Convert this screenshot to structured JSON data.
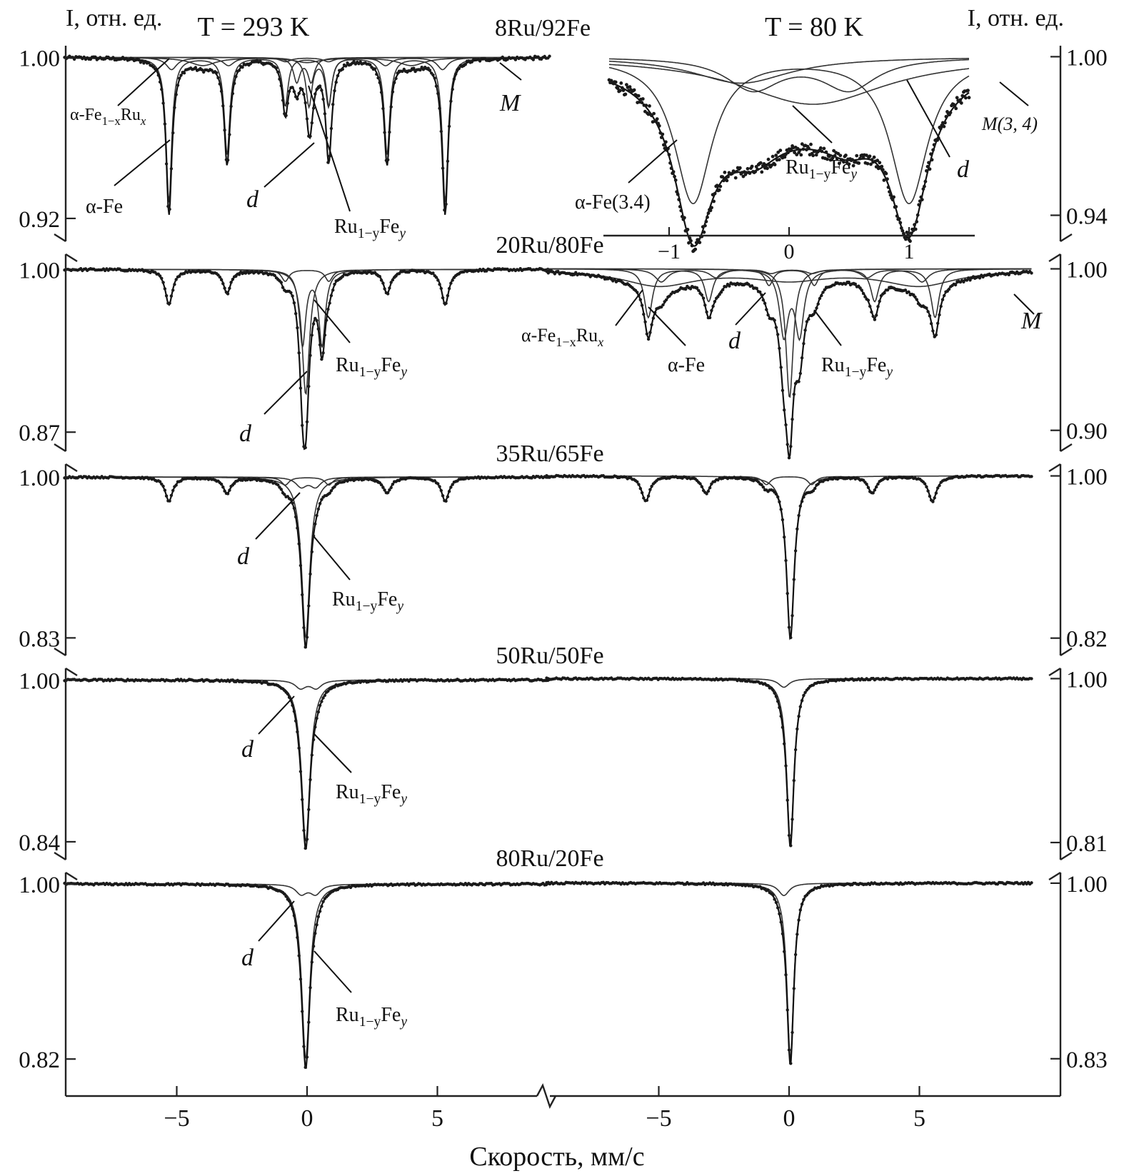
{
  "chart_data": {
    "type": "line",
    "xlabel": "Скорость, мм/с",
    "ylabel_left": "I, отн. ед.",
    "ylabel_right": "I, отн. ед.",
    "columns": [
      {
        "temperature": "T = 293 K",
        "xlim": [
          -9.5,
          9.5
        ],
        "xticks": [
          -5,
          0,
          5
        ]
      },
      {
        "temperature": "T = 80 K",
        "xlim": [
          -9.5,
          9.5
        ],
        "xticks": [
          -5,
          0,
          5
        ]
      }
    ],
    "panels": [
      {
        "sample": "8Ru/92Fe",
        "left": {
          "ylim": [
            0.915,
            1.003
          ],
          "yticks": [
            "1.00",
            "0.92"
          ],
          "components": [
            {
              "name": "α-Fe",
              "type": "sextet",
              "center": 0.0,
              "B": 10.6,
              "depth": 0.072,
              "width": 0.26
            },
            {
              "name": "α-Fe1−xRu x",
              "type": "sextet",
              "center": 0.0,
              "B": 10.4,
              "depth": 0.006,
              "width": 0.5
            },
            {
              "name": "Ru1−yFey",
              "type": "doublet",
              "center": 0.45,
              "split": 0.75,
              "depth": 0.024,
              "width": 0.28
            },
            {
              "name": "d",
              "type": "doublet",
              "center": -0.12,
              "split": 0.55,
              "depth": 0.012,
              "width": 0.3
            },
            {
              "name": "M",
              "type": "broad",
              "center": 0.0,
              "B": 8.0,
              "depth": 0.004,
              "width": 1.2
            }
          ],
          "labels": [
            "α-Fe1−xRux",
            "α-Fe",
            "d",
            "Ru1−yFey",
            "M"
          ]
        },
        "right": {
          "ylim": [
            0.935,
            1.002
          ],
          "yticks": [
            "1.00",
            "0.94"
          ],
          "inset_xlim": [
            -1.5,
            1.5
          ],
          "inset_xticks": [
            "−1",
            "0",
            "1"
          ],
          "components": [
            {
              "name": "α-Fe(3.4)",
              "type": "doublet",
              "center": 0.1,
              "split": 1.8,
              "depth": 0.055,
              "width": 0.38
            },
            {
              "name": "Ru1−yFey",
              "type": "doublet",
              "center": 0.1,
              "split": 0.8,
              "depth": 0.012,
              "width": 0.55
            },
            {
              "name": "d",
              "type": "broad",
              "center": 0.2,
              "depth": 0.018,
              "width": 1.5
            },
            {
              "name": "M(3, 4)",
              "type": "broad",
              "center": -0.4,
              "depth": 0.01,
              "width": 1.0
            }
          ],
          "labels": [
            "α-Fe(3.4)",
            "Ru1−yFey",
            "d",
            "M(3, 4)"
          ]
        }
      },
      {
        "sample": "20Ru/80Fe",
        "left": {
          "ylim": [
            0.865,
            1.003
          ],
          "yticks": [
            "1.00",
            "0.87"
          ],
          "components": [
            {
              "name": "α-Fe",
              "type": "sextet",
              "center": 0.0,
              "B": 10.6,
              "depth": 0.028,
              "width": 0.34
            },
            {
              "name": "Ru1−yFey",
              "type": "doublet",
              "center": 0.2,
              "split": 0.75,
              "depth": 0.06,
              "width": 0.3
            },
            {
              "name": "d",
              "type": "single",
              "center": -0.05,
              "depth": 0.1,
              "width": 0.34
            }
          ],
          "labels": [
            "Ru1−yFey",
            "d"
          ]
        },
        "right": {
          "ylim": [
            0.895,
            1.002
          ],
          "yticks": [
            "1.00",
            "0.90"
          ],
          "components": [
            {
              "name": "α-Fe",
              "type": "sextet",
              "center": 0.1,
              "B": 11.0,
              "depth": 0.03,
              "width": 0.38
            },
            {
              "name": "α-Fe1−xRux",
              "type": "sextet",
              "center": 0.1,
              "B": 10.0,
              "depth": 0.008,
              "width": 0.6
            },
            {
              "name": "Ru1−yFey",
              "type": "doublet",
              "center": 0.1,
              "split": 0.6,
              "depth": 0.04,
              "width": 0.4
            },
            {
              "name": "d",
              "type": "single",
              "center": 0.02,
              "depth": 0.08,
              "width": 0.34
            },
            {
              "name": "M",
              "type": "broad",
              "center": 0.0,
              "B": 10.0,
              "depth": 0.01,
              "width": 3.5
            }
          ],
          "labels": [
            "α-Fe1−xRux",
            "α-Fe",
            "d",
            "Ru1−yFey",
            "M"
          ]
        }
      },
      {
        "sample": "35Ru/65Fe",
        "left": {
          "ylim": [
            0.825,
            1.003
          ],
          "yticks": [
            "1.00",
            "0.83"
          ],
          "components": [
            {
              "name": "α-Fe",
              "type": "sextet",
              "center": 0.0,
              "B": 10.6,
              "depth": 0.025,
              "width": 0.36
            },
            {
              "name": "d",
              "type": "doublet",
              "center": 0.05,
              "split": 0.55,
              "depth": 0.01,
              "width": 0.5
            },
            {
              "name": "Ru1−yFey",
              "type": "single",
              "center": -0.05,
              "depth": 0.17,
              "width": 0.38
            }
          ],
          "labels": [
            "d",
            "Ru1−yFey"
          ]
        },
        "right": {
          "ylim": [
            0.815,
            1.002
          ],
          "yticks": [
            "1.00",
            "0.82"
          ],
          "components": [
            {
              "name": "α-Fe",
              "type": "sextet",
              "center": 0.0,
              "B": 11.0,
              "depth": 0.028,
              "width": 0.38
            },
            {
              "name": "Ru1−yFey",
              "type": "single",
              "center": 0.05,
              "depth": 0.18,
              "width": 0.36
            }
          ],
          "labels": []
        }
      },
      {
        "sample": "50Ru/50Fe",
        "left": {
          "ylim": [
            0.835,
            1.003
          ],
          "yticks": [
            "1.00",
            "0.84"
          ],
          "components": [
            {
              "name": "d",
              "type": "doublet",
              "center": 0.05,
              "split": 0.6,
              "depth": 0.008,
              "width": 0.5
            },
            {
              "name": "Ru1−yFey",
              "type": "single",
              "center": -0.05,
              "depth": 0.16,
              "width": 0.4
            }
          ],
          "labels": [
            "d",
            "Ru1−yFey"
          ]
        },
        "right": {
          "ylim": [
            0.805,
            1.002
          ],
          "yticks": [
            "1.00",
            "0.81"
          ],
          "components": [
            {
              "name": "d",
              "type": "single",
              "center": -0.2,
              "depth": 0.01,
              "width": 0.5
            },
            {
              "name": "Ru1−yFey",
              "type": "single",
              "center": 0.05,
              "depth": 0.19,
              "width": 0.34
            }
          ],
          "labels": []
        }
      },
      {
        "sample": "80Ru/20Fe",
        "left": {
          "ylim": [
            0.815,
            1.003
          ],
          "yticks": [
            "1.00",
            "0.82"
          ],
          "components": [
            {
              "name": "d",
              "type": "doublet",
              "center": 0.05,
              "split": 0.55,
              "depth": 0.01,
              "width": 0.5
            },
            {
              "name": "Ru1−yFey",
              "type": "single",
              "center": -0.05,
              "depth": 0.18,
              "width": 0.38
            }
          ],
          "labels": [
            "d",
            "Ru1−yFey"
          ]
        },
        "right": {
          "ylim": [
            0.825,
            1.002
          ],
          "yticks": [
            "1.00",
            "0.83"
          ],
          "components": [
            {
              "name": "d",
              "type": "single",
              "center": -0.2,
              "depth": 0.012,
              "width": 0.5
            },
            {
              "name": "Ru1−yFey",
              "type": "single",
              "center": 0.05,
              "depth": 0.17,
              "width": 0.32
            }
          ],
          "labels": []
        }
      }
    ]
  }
}
